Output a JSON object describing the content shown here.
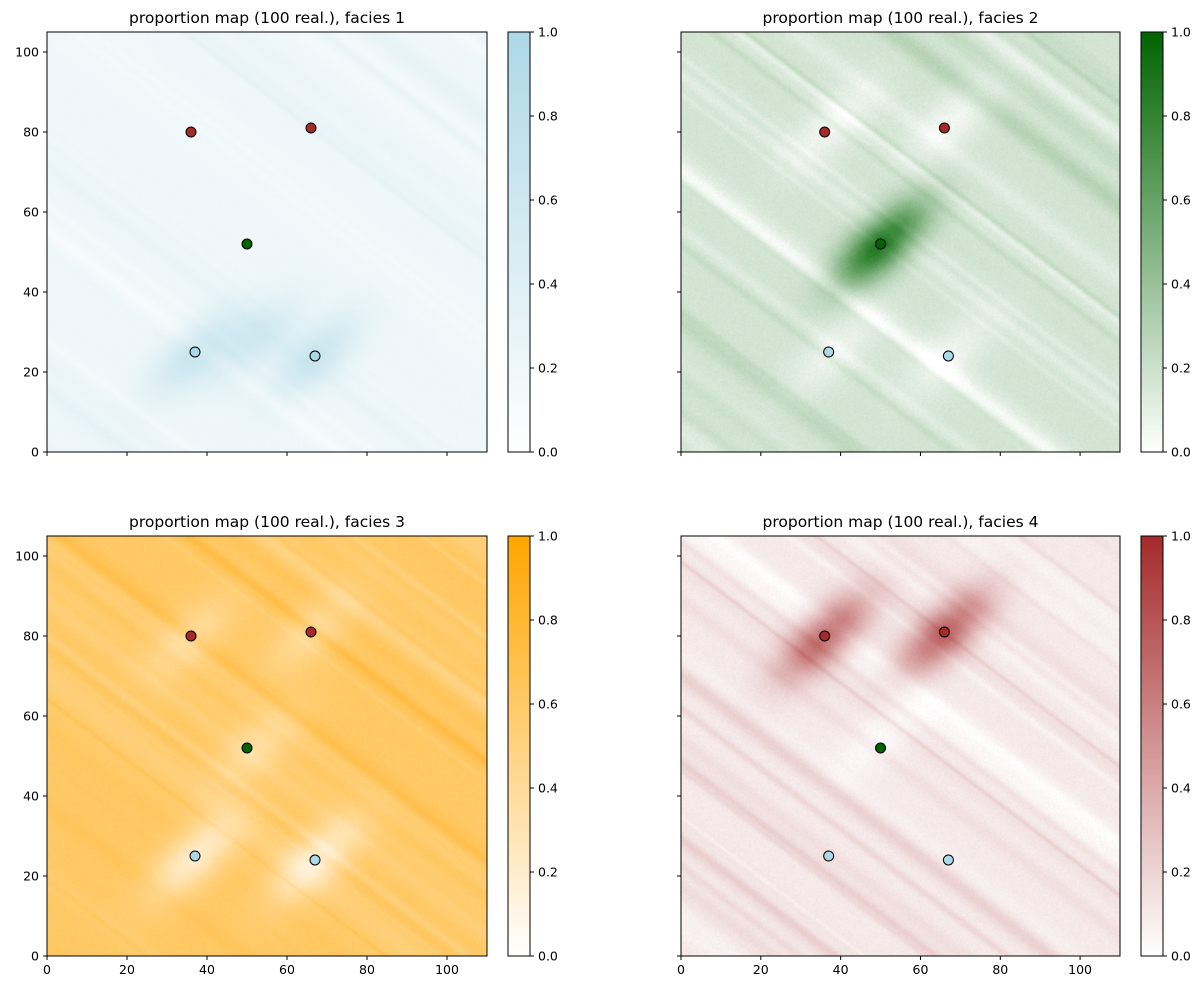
{
  "chart_data": [
    {
      "type": "heatmap",
      "title": "proportion map (100 real.), facies 1",
      "xlim": [
        0,
        110
      ],
      "ylim": [
        0,
        105
      ],
      "xticks": [
        0,
        20,
        40,
        60,
        80,
        100
      ],
      "yticks": [
        0,
        20,
        40,
        60,
        80,
        100
      ],
      "x_ticklabels_visible": false,
      "y_ticklabels_visible": true,
      "colormap": {
        "low": "#ffffff",
        "high": "#add8e6"
      },
      "colorbar": {
        "range": [
          0,
          1
        ],
        "ticks": [
          "0.0",
          "0.2",
          "0.4",
          "0.6",
          "0.8",
          "1.0"
        ]
      },
      "background_proportion": 0.2,
      "texture": "streaks",
      "anomalies": [
        {
          "x": 37,
          "y": 25,
          "value": 0.42
        },
        {
          "x": 67,
          "y": 24,
          "value": 0.42
        },
        {
          "x": 52,
          "y": 28,
          "value": 0.34
        }
      ],
      "points": [
        {
          "x": 36,
          "y": 80,
          "facies": 4
        },
        {
          "x": 66,
          "y": 81,
          "facies": 4
        },
        {
          "x": 50,
          "y": 52,
          "facies": 2
        },
        {
          "x": 37,
          "y": 25,
          "facies": 1
        },
        {
          "x": 67,
          "y": 24,
          "facies": 1
        }
      ]
    },
    {
      "type": "heatmap",
      "title": "proportion map (100 real.), facies 2",
      "xlim": [
        0,
        110
      ],
      "ylim": [
        0,
        105
      ],
      "xticks": [
        0,
        20,
        40,
        60,
        80,
        100
      ],
      "yticks": [
        0,
        20,
        40,
        60,
        80,
        100
      ],
      "x_ticklabels_visible": false,
      "y_ticklabels_visible": false,
      "colormap": {
        "low": "#ffffff",
        "high": "#006400"
      },
      "colorbar": {
        "range": [
          0,
          1
        ],
        "ticks": [
          "0.0",
          "0.2",
          "0.4",
          "0.6",
          "0.8",
          "1.0"
        ]
      },
      "background_proportion": 0.17,
      "texture": "streaks",
      "anomalies": [
        {
          "x": 50,
          "y": 52,
          "value": 0.7
        },
        {
          "x": 38,
          "y": 82,
          "value": -0.12
        },
        {
          "x": 68,
          "y": 83,
          "value": -0.12
        },
        {
          "x": 38,
          "y": 25,
          "value": -0.1
        },
        {
          "x": 67,
          "y": 24,
          "value": -0.1
        }
      ],
      "points": [
        {
          "x": 36,
          "y": 80,
          "facies": 4
        },
        {
          "x": 66,
          "y": 81,
          "facies": 4
        },
        {
          "x": 50,
          "y": 52,
          "facies": 2
        },
        {
          "x": 37,
          "y": 25,
          "facies": 1
        },
        {
          "x": 67,
          "y": 24,
          "facies": 1
        }
      ]
    },
    {
      "type": "heatmap",
      "title": "proportion map (100 real.), facies 3",
      "xlim": [
        0,
        110
      ],
      "ylim": [
        0,
        105
      ],
      "xticks": [
        0,
        20,
        40,
        60,
        80,
        100
      ],
      "yticks": [
        0,
        20,
        40,
        60,
        80,
        100
      ],
      "x_ticklabels_visible": true,
      "y_ticklabels_visible": true,
      "colormap": {
        "low": "#ffffff",
        "high": "#ffa500"
      },
      "colorbar": {
        "range": [
          0,
          1
        ],
        "ticks": [
          "0.0",
          "0.2",
          "0.4",
          "0.6",
          "0.8",
          "1.0"
        ]
      },
      "background_proportion": 0.6,
      "texture": "streaks",
      "anomalies": [
        {
          "x": 37,
          "y": 25,
          "value": -0.4
        },
        {
          "x": 67,
          "y": 24,
          "value": -0.4
        },
        {
          "x": 52,
          "y": 52,
          "value": -0.2
        },
        {
          "x": 36,
          "y": 80,
          "value": -0.2
        },
        {
          "x": 66,
          "y": 81,
          "value": -0.2
        }
      ],
      "points": [
        {
          "x": 36,
          "y": 80,
          "facies": 4
        },
        {
          "x": 66,
          "y": 81,
          "facies": 4
        },
        {
          "x": 50,
          "y": 52,
          "facies": 2
        },
        {
          "x": 37,
          "y": 25,
          "facies": 1
        },
        {
          "x": 67,
          "y": 24,
          "facies": 1
        }
      ]
    },
    {
      "type": "heatmap",
      "title": "proportion map (100 real.), facies 4",
      "xlim": [
        0,
        110
      ],
      "ylim": [
        0,
        105
      ],
      "xticks": [
        0,
        20,
        40,
        60,
        80,
        100
      ],
      "yticks": [
        0,
        20,
        40,
        60,
        80,
        100
      ],
      "x_ticklabels_visible": true,
      "y_ticklabels_visible": false,
      "colormap": {
        "low": "#ffffff",
        "high": "#a52a2a"
      },
      "colorbar": {
        "range": [
          0,
          1
        ],
        "ticks": [
          "0.0",
          "0.2",
          "0.4",
          "0.6",
          "0.8",
          "1.0"
        ]
      },
      "background_proportion": 0.1,
      "texture": "streaks",
      "anomalies": [
        {
          "x": 36,
          "y": 80,
          "value": 0.6
        },
        {
          "x": 66,
          "y": 81,
          "value": 0.6
        },
        {
          "x": 50,
          "y": 55,
          "value": -0.08
        }
      ],
      "points": [
        {
          "x": 36,
          "y": 80,
          "facies": 4
        },
        {
          "x": 66,
          "y": 81,
          "facies": 4
        },
        {
          "x": 50,
          "y": 52,
          "facies": 2
        },
        {
          "x": 37,
          "y": 25,
          "facies": 1
        },
        {
          "x": 67,
          "y": 24,
          "facies": 1
        }
      ]
    }
  ],
  "facies_colors": {
    "1": "#add8e6",
    "2": "#006400",
    "3": "#ffa500",
    "4": "#a52a2a"
  }
}
